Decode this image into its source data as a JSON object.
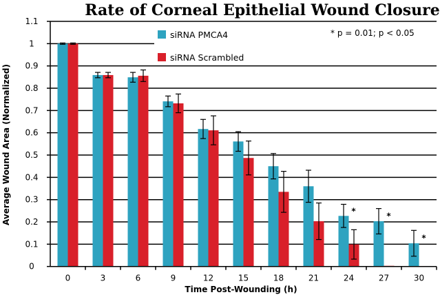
{
  "chart_data": {
    "type": "bar",
    "title": "Rate of Corneal Epithelial Wound Closure",
    "xlabel": "Time Post-Wounding (h)",
    "ylabel": "Average Wound Area (Normalized)",
    "annotation": "* p = 0.01; p < 0.05",
    "categories": [
      "0",
      "3",
      "6",
      "9",
      "12",
      "15",
      "18",
      "21",
      "24",
      "27",
      "30"
    ],
    "ylim": [
      0,
      1.1
    ],
    "yticks": [
      "0",
      "0.1",
      "0.2",
      "0.3",
      "0.4",
      "0.5",
      "0.6",
      "0.7",
      "0.8",
      "0.9",
      "1",
      "1.1"
    ],
    "grid": true,
    "legend_placement": "top",
    "series": [
      {
        "name": "siRNA PMCA4",
        "color": "#2ea3c0",
        "values": [
          1.0,
          0.859,
          0.849,
          0.741,
          0.617,
          0.561,
          0.45,
          0.36,
          0.227,
          0.203,
          0.104
        ],
        "errors": [
          0.003,
          0.012,
          0.022,
          0.024,
          0.043,
          0.044,
          0.057,
          0.072,
          0.052,
          0.057,
          0.058
        ],
        "significant": [
          false,
          false,
          false,
          false,
          false,
          false,
          false,
          false,
          true,
          true,
          true
        ]
      },
      {
        "name": "siRNA Scrambled",
        "color": "#d9202a",
        "values": [
          1.0,
          0.859,
          0.856,
          0.732,
          0.611,
          0.487,
          0.335,
          0.203,
          0.099,
          0.003,
          null
        ],
        "errors": [
          0.003,
          0.012,
          0.026,
          0.042,
          0.065,
          0.076,
          0.092,
          0.082,
          0.066,
          0,
          null
        ],
        "significant": [
          false,
          false,
          false,
          false,
          false,
          false,
          false,
          false,
          false,
          false,
          false
        ]
      }
    ],
    "significance_marker": "*"
  }
}
